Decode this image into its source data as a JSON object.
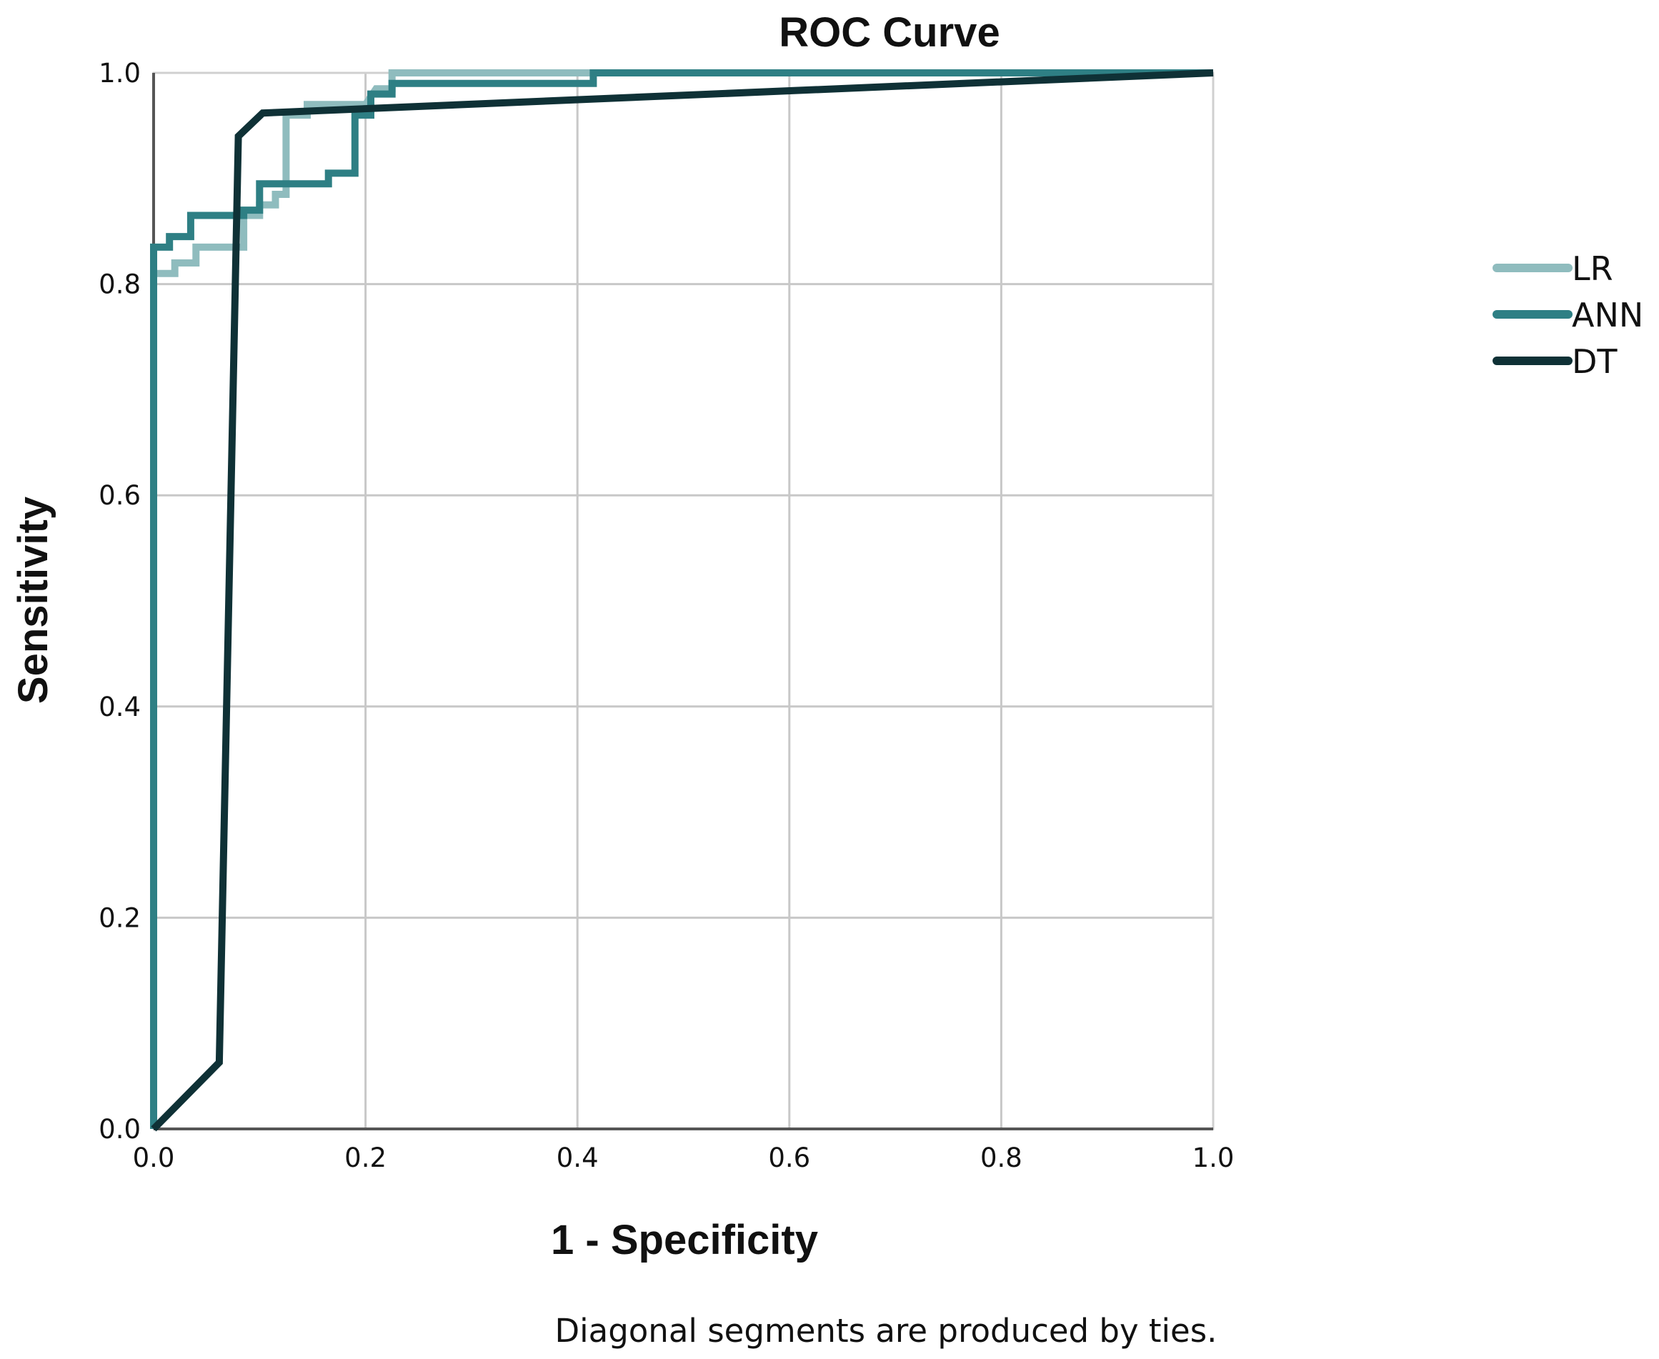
{
  "chart_data": {
    "type": "line",
    "title": "ROC Curve",
    "xlabel": "1 - Specificity",
    "ylabel": "Sensitivity",
    "xlim": [
      0,
      1
    ],
    "ylim": [
      0,
      1
    ],
    "xticks": [
      "0.0",
      "0.2",
      "0.4",
      "0.6",
      "0.8",
      "1.0"
    ],
    "yticks": [
      "0.0",
      "0.2",
      "0.4",
      "0.6",
      "0.8",
      "1.0"
    ],
    "grid": true,
    "legend_position": "right",
    "footnote": "Diagonal segments are produced by ties.",
    "series": [
      {
        "name": "LR",
        "color": "#8fbcbe",
        "points": [
          [
            0,
            0
          ],
          [
            0,
            0.81
          ],
          [
            0.02,
            0.81
          ],
          [
            0.02,
            0.82
          ],
          [
            0.04,
            0.82
          ],
          [
            0.04,
            0.835
          ],
          [
            0.085,
            0.835
          ],
          [
            0.085,
            0.865
          ],
          [
            0.1,
            0.865
          ],
          [
            0.1,
            0.875
          ],
          [
            0.115,
            0.875
          ],
          [
            0.115,
            0.885
          ],
          [
            0.125,
            0.885
          ],
          [
            0.125,
            0.96
          ],
          [
            0.145,
            0.96
          ],
          [
            0.145,
            0.97
          ],
          [
            0.2,
            0.97
          ],
          [
            0.21,
            0.985
          ],
          [
            0.225,
            0.985
          ],
          [
            0.225,
            1.0
          ],
          [
            0.41,
            1.0
          ],
          [
            1.0,
            1.0
          ]
        ]
      },
      {
        "name": "ANN",
        "color": "#2e7f84",
        "points": [
          [
            0,
            0
          ],
          [
            0,
            0.835
          ],
          [
            0.015,
            0.835
          ],
          [
            0.015,
            0.845
          ],
          [
            0.035,
            0.845
          ],
          [
            0.035,
            0.865
          ],
          [
            0.085,
            0.865
          ],
          [
            0.085,
            0.87
          ],
          [
            0.1,
            0.87
          ],
          [
            0.1,
            0.895
          ],
          [
            0.165,
            0.895
          ],
          [
            0.165,
            0.905
          ],
          [
            0.19,
            0.905
          ],
          [
            0.19,
            0.96
          ],
          [
            0.205,
            0.96
          ],
          [
            0.205,
            0.98
          ],
          [
            0.225,
            0.98
          ],
          [
            0.225,
            0.99
          ],
          [
            0.415,
            0.99
          ],
          [
            0.415,
            1.0
          ],
          [
            1.0,
            1.0
          ]
        ]
      },
      {
        "name": "DT",
        "color": "#0f3136",
        "points": [
          [
            0,
            0
          ],
          [
            0.062,
            0.063
          ],
          [
            0.08,
            0.94
          ],
          [
            0.103,
            0.962
          ],
          [
            1.0,
            1.0
          ]
        ]
      }
    ]
  }
}
